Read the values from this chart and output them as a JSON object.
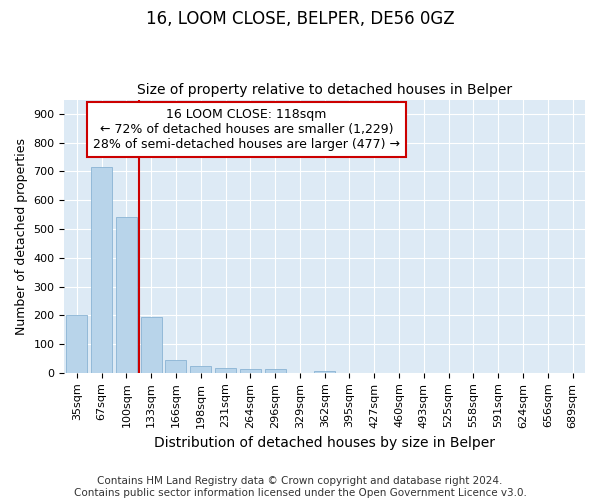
{
  "title1": "16, LOOM CLOSE, BELPER, DE56 0GZ",
  "title2": "Size of property relative to detached houses in Belper",
  "xlabel": "Distribution of detached houses by size in Belper",
  "ylabel": "Number of detached properties",
  "categories": [
    "35sqm",
    "67sqm",
    "100sqm",
    "133sqm",
    "166sqm",
    "198sqm",
    "231sqm",
    "264sqm",
    "296sqm",
    "329sqm",
    "362sqm",
    "395sqm",
    "427sqm",
    "460sqm",
    "493sqm",
    "525sqm",
    "558sqm",
    "591sqm",
    "624sqm",
    "656sqm",
    "689sqm"
  ],
  "values": [
    200,
    715,
    540,
    195,
    45,
    22,
    18,
    15,
    12,
    0,
    8,
    0,
    0,
    0,
    0,
    0,
    0,
    0,
    0,
    0,
    0
  ],
  "bar_color": "#b8d4ea",
  "bar_edgecolor": "#8ab4d4",
  "vline_x": 2.5,
  "vline_color": "#cc0000",
  "annotation_line1": "16 LOOM CLOSE: 118sqm",
  "annotation_line2": "← 72% of detached houses are smaller (1,229)",
  "annotation_line3": "28% of semi-detached houses are larger (477) →",
  "annotation_box_color": "#ffffff",
  "annotation_box_edgecolor": "#cc0000",
  "ylim": [
    0,
    950
  ],
  "yticks": [
    0,
    100,
    200,
    300,
    400,
    500,
    600,
    700,
    800,
    900
  ],
  "background_color": "#ddeaf5",
  "footer": "Contains HM Land Registry data © Crown copyright and database right 2024.\nContains public sector information licensed under the Open Government Licence v3.0.",
  "title1_fontsize": 12,
  "title2_fontsize": 10,
  "xlabel_fontsize": 10,
  "ylabel_fontsize": 9,
  "annotation_fontsize": 9,
  "footer_fontsize": 7.5,
  "tick_fontsize": 8
}
